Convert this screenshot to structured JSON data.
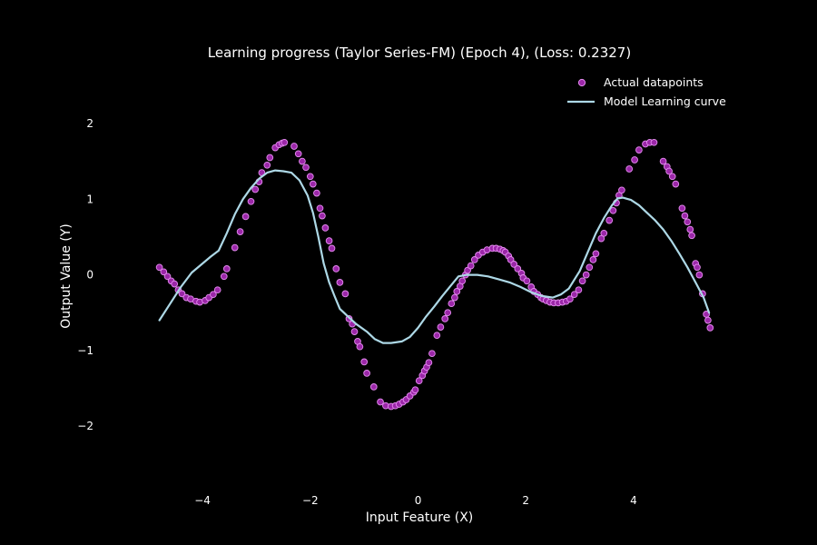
{
  "chart_data": {
    "type": "scatter",
    "title": "Learning progress (Taylor Series-FM) (Epoch 4), (Loss: 0.2327)",
    "xlabel": "Input Feature (X)",
    "ylabel": "Output Value (Y)",
    "xlim": [
      -5.45,
      5.5
    ],
    "ylim": [
      -2.85,
      2.6
    ],
    "xticks": [
      -4,
      -2,
      0,
      2,
      4
    ],
    "yticks": [
      -2,
      -1,
      0,
      1,
      2
    ],
    "xtick_labels": [
      "−4",
      "−2",
      "0",
      "2",
      "4"
    ],
    "ytick_labels": [
      "−2",
      "−1",
      "0",
      "1",
      "2"
    ],
    "grid": false,
    "legend": {
      "position": "top-right"
    },
    "colors": {
      "background": "#000000",
      "text": "#ffffff",
      "points_fill": "#9b27a8",
      "points_edge": "#e58cf0",
      "curve": "#add8e6"
    },
    "series": [
      {
        "name": "Actual datapoints",
        "kind": "scatter",
        "points": [
          [
            -4.8,
            0.1
          ],
          [
            -4.72,
            0.04
          ],
          [
            -4.65,
            -0.02
          ],
          [
            -4.58,
            -0.08
          ],
          [
            -4.52,
            -0.12
          ],
          [
            -4.45,
            -0.2
          ],
          [
            -4.38,
            -0.25
          ],
          [
            -4.3,
            -0.3
          ],
          [
            -4.22,
            -0.32
          ],
          [
            -4.12,
            -0.35
          ],
          [
            -4.05,
            -0.36
          ],
          [
            -3.95,
            -0.34
          ],
          [
            -3.88,
            -0.3
          ],
          [
            -3.8,
            -0.26
          ],
          [
            -3.72,
            -0.2
          ],
          [
            -3.6,
            -0.02
          ],
          [
            -3.55,
            0.08
          ],
          [
            -3.4,
            0.36
          ],
          [
            -3.3,
            0.57
          ],
          [
            -3.2,
            0.77
          ],
          [
            -3.1,
            0.97
          ],
          [
            -3.02,
            1.13
          ],
          [
            -2.95,
            1.23
          ],
          [
            -2.9,
            1.35
          ],
          [
            -2.8,
            1.45
          ],
          [
            -2.75,
            1.55
          ],
          [
            -2.65,
            1.68
          ],
          [
            -2.58,
            1.72
          ],
          [
            -2.52,
            1.74
          ],
          [
            -2.48,
            1.75
          ],
          [
            -2.3,
            1.7
          ],
          [
            -2.22,
            1.6
          ],
          [
            -2.15,
            1.5
          ],
          [
            -2.08,
            1.42
          ],
          [
            -2.0,
            1.3
          ],
          [
            -1.95,
            1.2
          ],
          [
            -1.88,
            1.08
          ],
          [
            -1.82,
            0.88
          ],
          [
            -1.78,
            0.78
          ],
          [
            -1.72,
            0.62
          ],
          [
            -1.65,
            0.45
          ],
          [
            -1.6,
            0.35
          ],
          [
            -1.52,
            0.08
          ],
          [
            -1.45,
            -0.1
          ],
          [
            -1.35,
            -0.25
          ],
          [
            -1.28,
            -0.58
          ],
          [
            -1.22,
            -0.65
          ],
          [
            -1.18,
            -0.75
          ],
          [
            -1.12,
            -0.88
          ],
          [
            -1.08,
            -0.95
          ],
          [
            -1.0,
            -1.15
          ],
          [
            -0.95,
            -1.3
          ],
          [
            -0.82,
            -1.48
          ],
          [
            -0.7,
            -1.68
          ],
          [
            -0.6,
            -1.73
          ],
          [
            -0.5,
            -1.74
          ],
          [
            -0.42,
            -1.73
          ],
          [
            -0.35,
            -1.71
          ],
          [
            -0.28,
            -1.68
          ],
          [
            -0.22,
            -1.65
          ],
          [
            -0.15,
            -1.6
          ],
          [
            -0.08,
            -1.55
          ],
          [
            -0.05,
            -1.52
          ],
          [
            0.02,
            -1.4
          ],
          [
            0.08,
            -1.33
          ],
          [
            0.12,
            -1.27
          ],
          [
            0.16,
            -1.22
          ],
          [
            0.2,
            -1.16
          ],
          [
            0.26,
            -1.04
          ],
          [
            0.35,
            -0.8
          ],
          [
            0.42,
            -0.69
          ],
          [
            0.5,
            -0.58
          ],
          [
            0.55,
            -0.5
          ],
          [
            0.62,
            -0.38
          ],
          [
            0.68,
            -0.3
          ],
          [
            0.72,
            -0.22
          ],
          [
            0.78,
            -0.15
          ],
          [
            0.82,
            -0.08
          ],
          [
            0.88,
            0.0
          ],
          [
            0.92,
            0.06
          ],
          [
            0.98,
            0.12
          ],
          [
            1.05,
            0.2
          ],
          [
            1.12,
            0.26
          ],
          [
            1.2,
            0.3
          ],
          [
            1.28,
            0.33
          ],
          [
            1.38,
            0.35
          ],
          [
            1.45,
            0.35
          ],
          [
            1.52,
            0.34
          ],
          [
            1.58,
            0.32
          ],
          [
            1.62,
            0.3
          ],
          [
            1.68,
            0.25
          ],
          [
            1.72,
            0.2
          ],
          [
            1.78,
            0.14
          ],
          [
            1.85,
            0.08
          ],
          [
            1.92,
            0.02
          ],
          [
            1.95,
            -0.04
          ],
          [
            2.02,
            -0.08
          ],
          [
            2.1,
            -0.16
          ],
          [
            2.15,
            -0.22
          ],
          [
            2.22,
            -0.26
          ],
          [
            2.28,
            -0.3
          ],
          [
            2.32,
            -0.32
          ],
          [
            2.38,
            -0.34
          ],
          [
            2.45,
            -0.36
          ],
          [
            2.52,
            -0.37
          ],
          [
            2.6,
            -0.37
          ],
          [
            2.68,
            -0.36
          ],
          [
            2.75,
            -0.35
          ],
          [
            2.82,
            -0.32
          ],
          [
            2.9,
            -0.26
          ],
          [
            2.98,
            -0.2
          ],
          [
            3.05,
            -0.08
          ],
          [
            3.12,
            0.0
          ],
          [
            3.18,
            0.1
          ],
          [
            3.25,
            0.2
          ],
          [
            3.3,
            0.28
          ],
          [
            3.4,
            0.48
          ],
          [
            3.45,
            0.55
          ],
          [
            3.55,
            0.72
          ],
          [
            3.62,
            0.85
          ],
          [
            3.68,
            0.95
          ],
          [
            3.73,
            1.05
          ],
          [
            3.78,
            1.12
          ],
          [
            3.92,
            1.4
          ],
          [
            4.02,
            1.52
          ],
          [
            4.1,
            1.65
          ],
          [
            4.22,
            1.73
          ],
          [
            4.3,
            1.75
          ],
          [
            4.38,
            1.75
          ],
          [
            4.55,
            1.5
          ],
          [
            4.62,
            1.43
          ],
          [
            4.66,
            1.37
          ],
          [
            4.72,
            1.3
          ],
          [
            4.78,
            1.2
          ],
          [
            4.9,
            0.88
          ],
          [
            4.95,
            0.78
          ],
          [
            5.0,
            0.7
          ],
          [
            5.05,
            0.6
          ],
          [
            5.08,
            0.52
          ],
          [
            5.15,
            0.15
          ],
          [
            5.18,
            0.1
          ],
          [
            5.22,
            0.0
          ],
          [
            5.28,
            -0.25
          ],
          [
            5.35,
            -0.52
          ],
          [
            5.38,
            -0.6
          ],
          [
            5.42,
            -0.7
          ]
        ]
      },
      {
        "name": "Model Learning curve",
        "kind": "line",
        "points": [
          [
            -4.8,
            -0.6
          ],
          [
            -4.6,
            -0.38
          ],
          [
            -4.4,
            -0.16
          ],
          [
            -4.2,
            0.03
          ],
          [
            -4.0,
            0.15
          ],
          [
            -3.85,
            0.24
          ],
          [
            -3.7,
            0.32
          ],
          [
            -3.55,
            0.55
          ],
          [
            -3.4,
            0.8
          ],
          [
            -3.25,
            1.0
          ],
          [
            -3.1,
            1.15
          ],
          [
            -2.95,
            1.27
          ],
          [
            -2.8,
            1.35
          ],
          [
            -2.65,
            1.38
          ],
          [
            -2.5,
            1.37
          ],
          [
            -2.35,
            1.35
          ],
          [
            -2.2,
            1.25
          ],
          [
            -2.05,
            1.05
          ],
          [
            -1.95,
            0.82
          ],
          [
            -1.85,
            0.5
          ],
          [
            -1.75,
            0.15
          ],
          [
            -1.65,
            -0.1
          ],
          [
            -1.55,
            -0.28
          ],
          [
            -1.45,
            -0.45
          ],
          [
            -1.3,
            -0.55
          ],
          [
            -1.15,
            -0.65
          ],
          [
            -0.95,
            -0.75
          ],
          [
            -0.8,
            -0.85
          ],
          [
            -0.65,
            -0.9
          ],
          [
            -0.5,
            -0.9
          ],
          [
            -0.3,
            -0.88
          ],
          [
            -0.15,
            -0.82
          ],
          [
            0.0,
            -0.7
          ],
          [
            0.15,
            -0.55
          ],
          [
            0.3,
            -0.42
          ],
          [
            0.45,
            -0.28
          ],
          [
            0.6,
            -0.15
          ],
          [
            0.75,
            -0.02
          ],
          [
            0.9,
            0.0
          ],
          [
            1.1,
            0.0
          ],
          [
            1.3,
            -0.02
          ],
          [
            1.5,
            -0.06
          ],
          [
            1.7,
            -0.1
          ],
          [
            1.9,
            -0.16
          ],
          [
            2.1,
            -0.23
          ],
          [
            2.3,
            -0.28
          ],
          [
            2.5,
            -0.3
          ],
          [
            2.65,
            -0.26
          ],
          [
            2.8,
            -0.18
          ],
          [
            3.0,
            0.05
          ],
          [
            3.15,
            0.3
          ],
          [
            3.3,
            0.55
          ],
          [
            3.45,
            0.75
          ],
          [
            3.6,
            0.92
          ],
          [
            3.7,
            1.01
          ],
          [
            3.8,
            1.02
          ],
          [
            3.95,
            0.99
          ],
          [
            4.1,
            0.92
          ],
          [
            4.25,
            0.82
          ],
          [
            4.4,
            0.72
          ],
          [
            4.55,
            0.6
          ],
          [
            4.7,
            0.45
          ],
          [
            4.85,
            0.28
          ],
          [
            5.0,
            0.1
          ],
          [
            5.15,
            -0.1
          ],
          [
            5.3,
            -0.3
          ],
          [
            5.4,
            -0.5
          ]
        ]
      }
    ]
  }
}
